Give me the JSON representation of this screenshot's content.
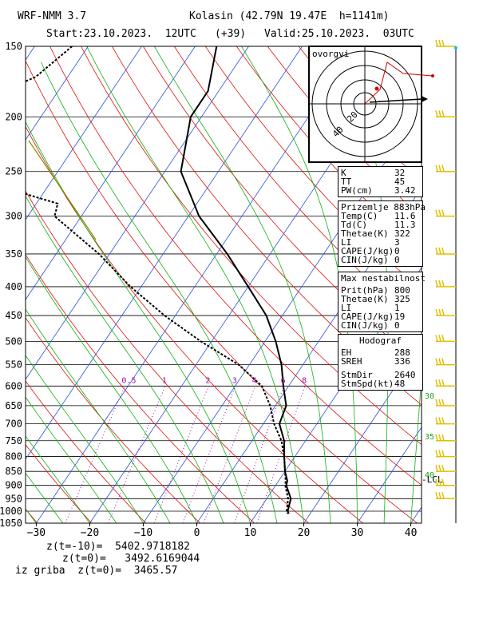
{
  "header": {
    "model": "WRF-NMM 3.7",
    "location": "Kolasin (42.79N 19.47E  h=1141m)",
    "start": "Start:23.10.2023.  12UTC",
    "step": "(+39)",
    "valid": "Valid:25.10.2023.  03UTC"
  },
  "hodograph_inset": {
    "label": "ovorgvi",
    "ring_labels": [
      "20",
      "40"
    ]
  },
  "boxes": {
    "indices": [
      {
        "k": "K",
        "v": "32"
      },
      {
        "k": "TT",
        "v": "45"
      },
      {
        "k": "PW(cm)",
        "v": "3.42"
      }
    ],
    "surface": {
      "title": "Prizemlje 883hPa",
      "rows": [
        {
          "k": "Temp(C)",
          "v": "11.6"
        },
        {
          "k": "Td(C)",
          "v": "11.3"
        },
        {
          "k": "Thetae(K)",
          "v": "322"
        },
        {
          "k": "LI",
          "v": "3"
        },
        {
          "k": "CAPE(J/kg)",
          "v": "0"
        },
        {
          "k": "CIN(J/kg)",
          "v": "0"
        }
      ]
    },
    "max_unstable": {
      "title": "Max nestabilnost",
      "rows": [
        {
          "k": "Prit(hPa)",
          "v": "800"
        },
        {
          "k": "Thetae(K)",
          "v": "325"
        },
        {
          "k": "LI",
          "v": "1"
        },
        {
          "k": "CAPE(J/kg)",
          "v": "19"
        },
        {
          "k": "CIN(J/kg)",
          "v": "0"
        }
      ]
    },
    "hodograf": {
      "title": "Hodograf",
      "rows": [
        {
          "k": "EH",
          "v": "288"
        },
        {
          "k": "SREH",
          "v": "336"
        },
        {
          "k": "StmDir",
          "v": "2640"
        },
        {
          "k": "StmSpd(kt)",
          "v": "48"
        }
      ]
    }
  },
  "footer": {
    "line1": "z(t=-10)=  5402.9718182",
    "line2": "z(t=0)=   3492.6169044",
    "line3": "iz griba  z(t=0)=  3465.57"
  },
  "colors": {
    "isotherm": "#2b50d8",
    "dry_adiabat": "#e01010",
    "moist_adiabat": "#10b010",
    "mixing_ratio": "#a010a0",
    "wind_barb": "#e0c000",
    "theta_label": "#20a020",
    "olive": "#8b8b00"
  },
  "chart_data": {
    "type": "skew-t",
    "pressure_ticks": [
      150,
      200,
      250,
      300,
      350,
      400,
      450,
      500,
      550,
      600,
      650,
      700,
      750,
      800,
      850,
      900,
      950,
      1000,
      1050
    ],
    "temperature_ticks": [
      -30,
      -20,
      -10,
      0,
      10,
      20,
      30,
      40
    ],
    "temperature_range": [
      -32,
      42
    ],
    "pressure_range": [
      150,
      1050
    ],
    "mixing_ratio_labels": [
      "0.5",
      "1",
      "2",
      "3",
      "4",
      "6",
      "8"
    ],
    "mixing_ratio_values": [
      0.5,
      1,
      2,
      3,
      4,
      6,
      8
    ],
    "theta_e_labels": [
      "30",
      "35",
      "40"
    ],
    "lcl_label": "-LCL",
    "temperature_profile": [
      {
        "p": 150,
        "t": -56
      },
      {
        "p": 180,
        "t": -52
      },
      {
        "p": 200,
        "t": -52
      },
      {
        "p": 250,
        "t": -47
      },
      {
        "p": 300,
        "t": -38
      },
      {
        "p": 350,
        "t": -28
      },
      {
        "p": 400,
        "t": -20
      },
      {
        "p": 450,
        "t": -13
      },
      {
        "p": 500,
        "t": -8
      },
      {
        "p": 550,
        "t": -4
      },
      {
        "p": 600,
        "t": -1
      },
      {
        "p": 650,
        "t": 2
      },
      {
        "p": 700,
        "t": 3
      },
      {
        "p": 750,
        "t": 6
      },
      {
        "p": 800,
        "t": 8
      },
      {
        "p": 850,
        "t": 10
      },
      {
        "p": 883,
        "t": 11.6
      },
      {
        "p": 900,
        "t": 12
      },
      {
        "p": 950,
        "t": 14.5
      },
      {
        "p": 1000,
        "t": 15.5
      },
      {
        "p": 1010,
        "t": 16
      }
    ],
    "dewpoint_profile": [
      {
        "p": 150,
        "t": -83
      },
      {
        "p": 170,
        "t": -86
      },
      {
        "p": 200,
        "t": -98
      },
      {
        "p": 250,
        "t": -90
      },
      {
        "p": 285,
        "t": -66
      },
      {
        "p": 300,
        "t": -65
      },
      {
        "p": 350,
        "t": -52
      },
      {
        "p": 400,
        "t": -42
      },
      {
        "p": 450,
        "t": -32
      },
      {
        "p": 500,
        "t": -22
      },
      {
        "p": 550,
        "t": -12
      },
      {
        "p": 600,
        "t": -5
      },
      {
        "p": 650,
        "t": -1
      },
      {
        "p": 700,
        "t": 2
      },
      {
        "p": 750,
        "t": 5.5
      },
      {
        "p": 800,
        "t": 8
      },
      {
        "p": 850,
        "t": 10
      },
      {
        "p": 883,
        "t": 11.3
      },
      {
        "p": 900,
        "t": 11.8
      },
      {
        "p": 950,
        "t": 14
      },
      {
        "p": 1000,
        "t": 15.3
      },
      {
        "p": 1010,
        "t": 15.8
      }
    ],
    "wind_barb_pressures": [
      150,
      200,
      250,
      300,
      350,
      400,
      450,
      500,
      550,
      600,
      650,
      700,
      750,
      800,
      850,
      900,
      950
    ]
  }
}
